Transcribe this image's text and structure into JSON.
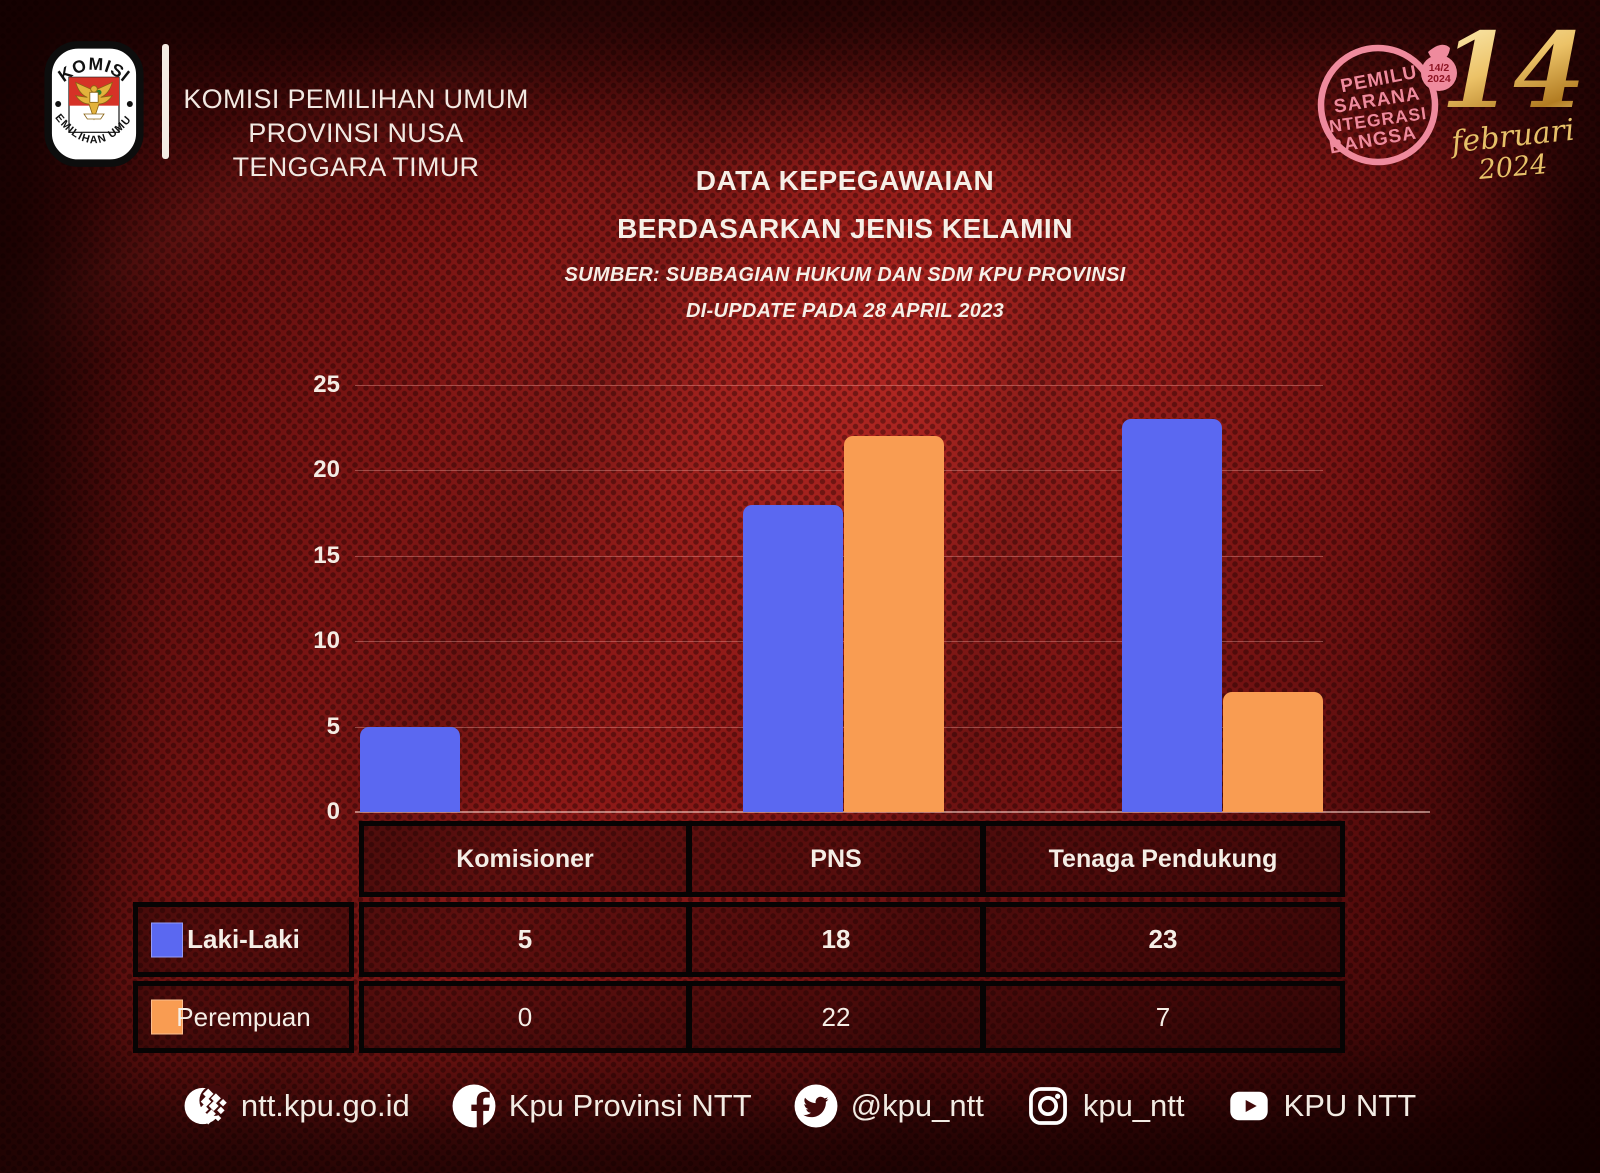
{
  "header": {
    "org_line1": "KOMISI PEMILIHAN UMUM",
    "org_line2": "PROVINSI NUSA TENGGARA TIMUR",
    "logo": {
      "arc_top": "KOMISI",
      "arc_bottom": "PEMILIHAN UMUM"
    }
  },
  "badges": {
    "pemilu": {
      "lines": [
        "PEMILU",
        "SARANA",
        "INTEGRASI",
        "BANGSA"
      ],
      "bubble_top": "14/2",
      "bubble_bottom": "2024",
      "color": "#ef8a9d"
    },
    "date": {
      "day": "14",
      "month": "februari",
      "year": "2024",
      "color": "#e7c169"
    }
  },
  "title": {
    "line1": "DATA KEPEGAWAIAN",
    "line2": "BERDASARKAN JENIS KELAMIN",
    "source": "SUMBER: SUBBAGIAN HUKUM DAN SDM KPU PROVINSI",
    "updated": "DI-UPDATE PADA 28 APRIL 2023"
  },
  "chart_data": {
    "type": "bar",
    "title": "DATA KEPEGAWAIAN BERDASARKAN JENIS KELAMIN",
    "categories": [
      "Komisioner",
      "PNS",
      "Tenaga Pendukung"
    ],
    "series": [
      {
        "name": "Laki-Laki",
        "color": "#5b68f1",
        "values": [
          5,
          18,
          23
        ]
      },
      {
        "name": "Perempuan",
        "color": "#f99c52",
        "values": [
          0,
          22,
          7
        ]
      }
    ],
    "ylim": [
      0,
      25
    ],
    "yticks": [
      0,
      5,
      10,
      15,
      20,
      25
    ],
    "grid": true,
    "legend_position": "table-left",
    "background": "#8c1917"
  },
  "footer": {
    "items": [
      {
        "icon": "globe-icon",
        "label": "ntt.kpu.go.id"
      },
      {
        "icon": "facebook-icon",
        "label": "Kpu Provinsi NTT"
      },
      {
        "icon": "twitter-icon",
        "label": "@kpu_ntt"
      },
      {
        "icon": "instagram-icon",
        "label": "kpu_ntt"
      },
      {
        "icon": "youtube-icon",
        "label": "KPU NTT"
      }
    ]
  }
}
